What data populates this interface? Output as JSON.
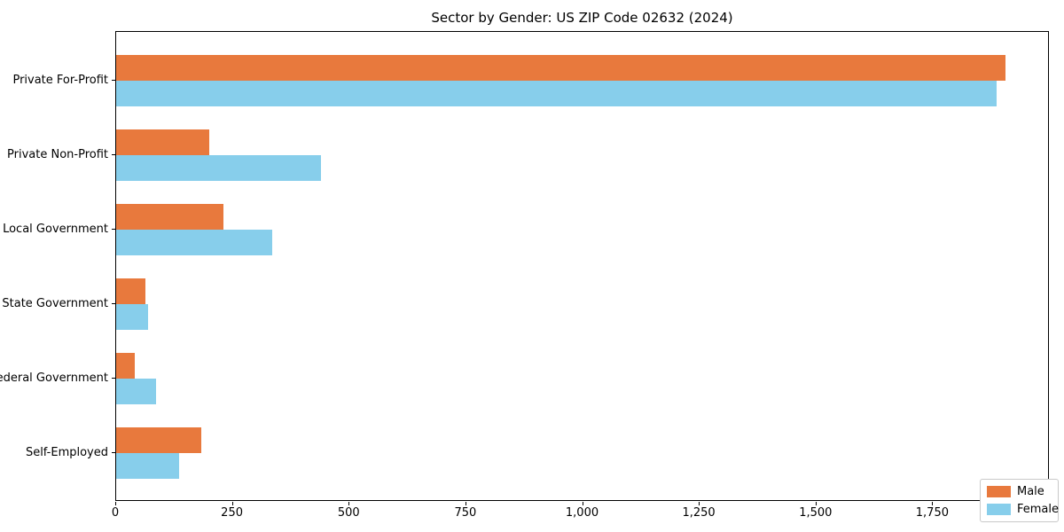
{
  "title": "Sector by Gender: US ZIP Code 02632 (2024)",
  "colors": {
    "male": "#e8793d",
    "female": "#87ceeb",
    "axis": "#000000",
    "legend_border": "#c9c9c9",
    "background": "#ffffff"
  },
  "legend": {
    "entries": [
      "Male",
      "Female"
    ],
    "position": "lower right"
  },
  "chart_data": {
    "type": "bar",
    "orientation": "horizontal",
    "title": "Sector by Gender: US ZIP Code 02632 (2024)",
    "categories": [
      "Private For-Profit",
      "Private Non-Profit",
      "Local Government",
      "State Government",
      "Federal Government",
      "Self-Employed"
    ],
    "series": [
      {
        "name": "Male",
        "color": "#e8793d",
        "values": [
          1905,
          200,
          230,
          63,
          40,
          182
        ]
      },
      {
        "name": "Female",
        "color": "#87ceeb",
        "values": [
          1885,
          438,
          335,
          69,
          85,
          134
        ]
      }
    ],
    "xlabel": "",
    "ylabel": "",
    "xlim": [
      0,
      2000
    ],
    "xticks": {
      "values": [
        0,
        250,
        500,
        750,
        1000,
        1250,
        1500,
        1750
      ],
      "labels": [
        "0",
        "250",
        "500",
        "750",
        "1,000",
        "1,250",
        "1,500",
        "1,750"
      ]
    },
    "grid": false,
    "legend_position": "lower right"
  }
}
